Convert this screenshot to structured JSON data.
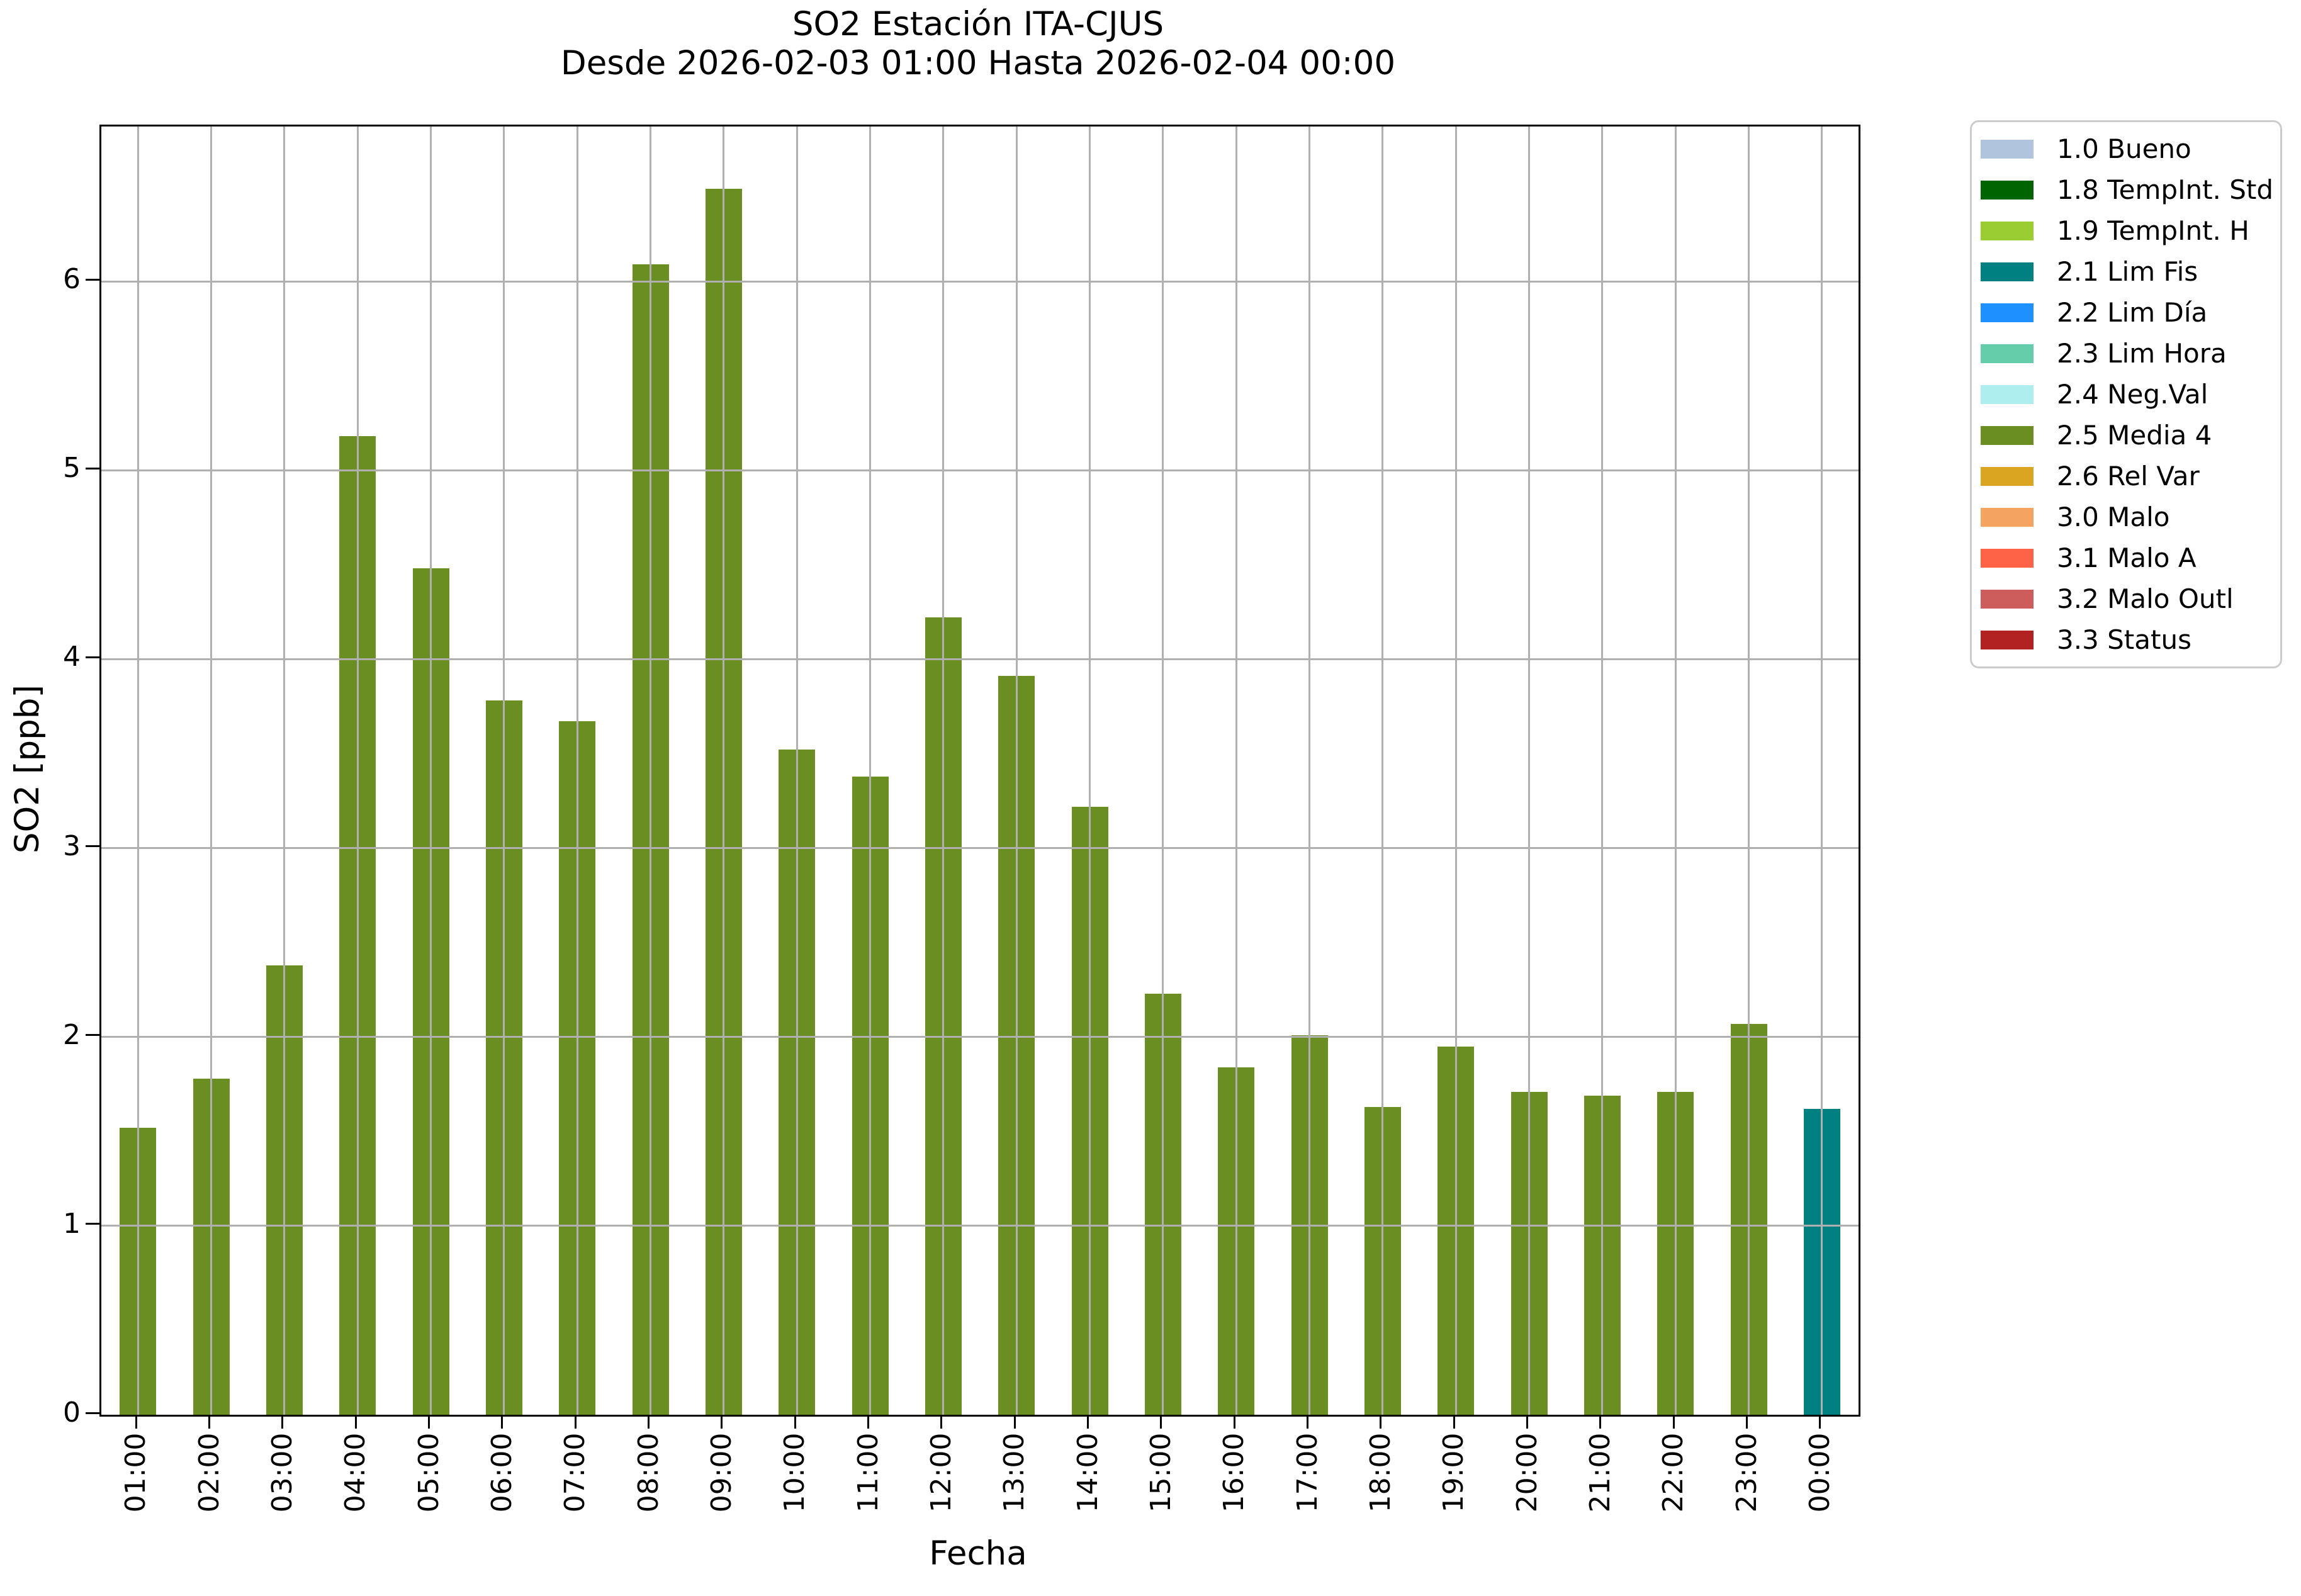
{
  "figure": {
    "title": "SO2 Estación ITA-CJUS",
    "subtitle": "Desde 2026-02-03 01:00 Hasta 2026-02-04 00:00",
    "xlabel": "Fecha",
    "ylabel": "SO2 [ppb]"
  },
  "colors": {
    "bar_default": "#6B8E23",
    "bar_last": "#008080",
    "grid": "#B0B0B0",
    "spine": "#000000",
    "background": "#FFFFFF",
    "legend_border": "#CCCCCC"
  },
  "chart_data": {
    "type": "bar",
    "title": "SO2 Estación ITA-CJUS",
    "subtitle": "Desde 2026-02-03 01:00 Hasta 2026-02-04 00:00",
    "xlabel": "Fecha",
    "ylabel": "SO2 [ppb]",
    "ylim": [
      0,
      6.82
    ],
    "yticks": [
      0,
      1,
      2,
      3,
      4,
      5,
      6
    ],
    "grid": true,
    "grid_color": "#B0B0B0",
    "legend_position": "outside-upper-right",
    "categories": [
      "01:00",
      "02:00",
      "03:00",
      "04:00",
      "05:00",
      "06:00",
      "07:00",
      "08:00",
      "09:00",
      "10:00",
      "11:00",
      "12:00",
      "13:00",
      "14:00",
      "15:00",
      "16:00",
      "17:00",
      "18:00",
      "19:00",
      "20:00",
      "21:00",
      "22:00",
      "23:00",
      "00:00"
    ],
    "values": [
      1.52,
      1.78,
      2.38,
      5.18,
      4.48,
      3.78,
      3.67,
      6.09,
      6.49,
      3.52,
      3.38,
      4.22,
      3.91,
      3.22,
      2.23,
      1.84,
      2.01,
      1.63,
      1.95,
      1.71,
      1.69,
      1.71,
      2.07,
      1.62
    ],
    "bar_status": [
      "2.5 Media 4",
      "2.5 Media 4",
      "2.5 Media 4",
      "2.5 Media 4",
      "2.5 Media 4",
      "2.5 Media 4",
      "2.5 Media 4",
      "2.5 Media 4",
      "2.5 Media 4",
      "2.5 Media 4",
      "2.5 Media 4",
      "2.5 Media 4",
      "2.5 Media 4",
      "2.5 Media 4",
      "2.5 Media 4",
      "2.5 Media 4",
      "2.5 Media 4",
      "2.5 Media 4",
      "2.5 Media 4",
      "2.5 Media 4",
      "2.5 Media 4",
      "2.5 Media 4",
      "2.5 Media 4",
      "2.1 Lim Fis"
    ],
    "bar_colors": [
      "#6B8E23",
      "#6B8E23",
      "#6B8E23",
      "#6B8E23",
      "#6B8E23",
      "#6B8E23",
      "#6B8E23",
      "#6B8E23",
      "#6B8E23",
      "#6B8E23",
      "#6B8E23",
      "#6B8E23",
      "#6B8E23",
      "#6B8E23",
      "#6B8E23",
      "#6B8E23",
      "#6B8E23",
      "#6B8E23",
      "#6B8E23",
      "#6B8E23",
      "#6B8E23",
      "#6B8E23",
      "#6B8E23",
      "#008080"
    ],
    "legend_entries": [
      {
        "label": "1.0 Bueno",
        "color": "#B0C4DE"
      },
      {
        "label": "1.8 TempInt. Std",
        "color": "#006400"
      },
      {
        "label": "1.9 TempInt. H",
        "color": "#9ACD32"
      },
      {
        "label": "2.1 Lim Fis",
        "color": "#008080"
      },
      {
        "label": "2.2 Lim Día",
        "color": "#1E90FF"
      },
      {
        "label": "2.3 Lim Hora",
        "color": "#66CDAA"
      },
      {
        "label": "2.4 Neg.Val",
        "color": "#AFEEEE"
      },
      {
        "label": "2.5 Media 4",
        "color": "#6B8E23"
      },
      {
        "label": "2.6 Rel Var",
        "color": "#DAA520"
      },
      {
        "label": "3.0 Malo",
        "color": "#F4A460"
      },
      {
        "label": "3.1 Malo A",
        "color": "#FF6347"
      },
      {
        "label": "3.2 Malo Outl",
        "color": "#CD5C5C"
      },
      {
        "label": "3.3 Status",
        "color": "#B22222"
      }
    ]
  }
}
